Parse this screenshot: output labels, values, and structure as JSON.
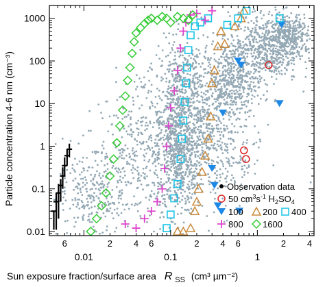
{
  "chart_data": {
    "type": "scatter",
    "title": "",
    "xlabel": {
      "prefix": "Sun exposure fraction/surface area",
      "symbol": "R",
      "subscript": "SS",
      "unit": "(cm³ µm⁻²)"
    },
    "ylabel": "Particle concentration 4-6 nm (cm⁻³)",
    "x_scale": "log",
    "y_scale": "log",
    "xlim": [
      0.004,
      4.5
    ],
    "ylim": [
      0.008,
      2000
    ],
    "x_major_ticks": [
      {
        "value": 0.01,
        "label": "0.01"
      },
      {
        "value": 0.1,
        "label": "0.1"
      },
      {
        "value": 1,
        "label": "1"
      }
    ],
    "x_minor_ticks": [
      {
        "value": 0.006,
        "label": "6"
      },
      {
        "value": 0.02,
        "label": "2"
      },
      {
        "value": 0.04,
        "label": "4"
      },
      {
        "value": 0.06,
        "label": "6"
      },
      {
        "value": 0.2,
        "label": "2"
      },
      {
        "value": 0.4,
        "label": "4"
      },
      {
        "value": 0.6,
        "label": "6"
      },
      {
        "value": 2,
        "label": "2"
      },
      {
        "value": 4,
        "label": "4"
      }
    ],
    "y_major_ticks": [
      {
        "value": 0.01,
        "label": "0.01"
      },
      {
        "value": 0.1,
        "label": "0.1"
      },
      {
        "value": 1,
        "label": "1"
      },
      {
        "value": 10,
        "label": "10"
      },
      {
        "value": 100,
        "label": "100"
      },
      {
        "value": 1000,
        "label": "1000"
      }
    ],
    "grid": false,
    "legend_position": "bottom-right",
    "legend": {
      "observation": "Observation data",
      "h2so4_prefix": "50 cm",
      "h2so4_sup1": "3",
      "h2so4_mid": "s",
      "h2so4_sup2": "-1",
      "h2so4_species": " H",
      "h2so4_sub1": "2",
      "h2so4_mid2": "SO",
      "h2so4_sub2": "4",
      "labels": {
        "s100": "100",
        "s200": "200",
        "s400": "400",
        "s800": "800",
        "s1600": "1600"
      }
    },
    "observation_scatter_color": "#93a8b4",
    "observation_binned": {
      "color": "#000000",
      "points": [
        {
          "x": 0.0045,
          "y": 0.03,
          "ylo": 0.011,
          "yhi": 0.03
        },
        {
          "x": 0.0048,
          "y": 0.05,
          "ylo": 0.011,
          "yhi": 0.08
        },
        {
          "x": 0.0051,
          "y": 0.08,
          "ylo": 0.02,
          "yhi": 0.13
        },
        {
          "x": 0.0054,
          "y": 0.12,
          "ylo": 0.05,
          "yhi": 0.17
        },
        {
          "x": 0.0057,
          "y": 0.2,
          "ylo": 0.1,
          "yhi": 0.32
        },
        {
          "x": 0.006,
          "y": 0.35,
          "ylo": 0.2,
          "yhi": 0.55
        },
        {
          "x": 0.0064,
          "y": 0.6,
          "ylo": 0.35,
          "yhi": 0.85
        },
        {
          "x": 0.0068,
          "y": 0.85,
          "ylo": 0.55,
          "yhi": 1.15
        }
      ]
    },
    "series": [
      {
        "name": "50",
        "marker": "circle-open",
        "color": "#dd2222",
        "points": [
          [
            0.7,
            0.8
          ],
          [
            0.74,
            0.5
          ],
          [
            1.35,
            80
          ]
        ]
      },
      {
        "name": "100",
        "marker": "triangle-down-filled",
        "color": "#1e88e5",
        "points": [
          [
            0.6,
            100
          ],
          [
            0.65,
            80
          ],
          [
            0.4,
            6
          ],
          [
            0.3,
            0.3
          ],
          [
            0.32,
            0.12
          ],
          [
            0.35,
            0.04
          ],
          [
            1.9,
            700
          ],
          [
            0.62,
            0.03
          ],
          [
            1.8,
            10
          ]
        ]
      },
      {
        "name": "200",
        "marker": "triangle-up-open",
        "color": "#c98a3b",
        "points": [
          [
            0.12,
            0.01
          ],
          [
            0.14,
            0.01
          ],
          [
            0.17,
            0.012
          ],
          [
            0.19,
            0.03
          ],
          [
            0.2,
            0.05
          ],
          [
            0.21,
            0.1
          ],
          [
            0.23,
            0.25
          ],
          [
            0.25,
            0.6
          ],
          [
            0.27,
            1.5
          ],
          [
            0.29,
            5
          ],
          [
            0.3,
            30
          ],
          [
            0.32,
            60
          ],
          [
            0.35,
            220
          ],
          [
            0.38,
            500
          ],
          [
            0.55,
            650
          ],
          [
            0.65,
            1000
          ],
          [
            0.42,
            250
          ],
          [
            0.7,
            1500
          ]
        ]
      },
      {
        "name": "400",
        "marker": "square-open",
        "color": "#17c3e6",
        "points": [
          [
            0.09,
            0.012
          ],
          [
            0.1,
            0.025
          ],
          [
            0.11,
            0.06
          ],
          [
            0.12,
            0.13
          ],
          [
            0.13,
            0.5
          ],
          [
            0.135,
            1.5
          ],
          [
            0.14,
            4
          ],
          [
            0.145,
            11
          ],
          [
            0.15,
            30
          ],
          [
            0.155,
            70
          ],
          [
            0.16,
            180
          ],
          [
            0.17,
            400
          ],
          [
            0.19,
            650
          ],
          [
            0.22,
            800
          ],
          [
            0.27,
            1000
          ],
          [
            0.45,
            700
          ],
          [
            0.6,
            1000
          ],
          [
            0.75,
            1500
          ],
          [
            1.8,
            1000
          ]
        ]
      },
      {
        "name": "800",
        "marker": "plus",
        "color": "#dd44cc",
        "points": [
          [
            0.03,
            0.015
          ],
          [
            0.04,
            0.012
          ],
          [
            0.05,
            0.02
          ],
          [
            0.06,
            0.03
          ],
          [
            0.07,
            0.05
          ],
          [
            0.08,
            0.1
          ],
          [
            0.085,
            0.3
          ],
          [
            0.09,
            1
          ],
          [
            0.095,
            3
          ],
          [
            0.1,
            8
          ],
          [
            0.11,
            20
          ],
          [
            0.12,
            60
          ],
          [
            0.13,
            200
          ],
          [
            0.14,
            500
          ],
          [
            0.15,
            800
          ],
          [
            0.17,
            1200
          ],
          [
            0.2,
            1300
          ],
          [
            0.25,
            900
          ],
          [
            0.3,
            1500
          ]
        ]
      },
      {
        "name": "1600",
        "marker": "diamond-open",
        "color": "#33cc33",
        "points": [
          [
            0.012,
            0.01
          ],
          [
            0.014,
            0.02
          ],
          [
            0.016,
            0.04
          ],
          [
            0.018,
            0.08
          ],
          [
            0.02,
            0.2
          ],
          [
            0.022,
            0.5
          ],
          [
            0.024,
            1.2
          ],
          [
            0.026,
            3
          ],
          [
            0.028,
            7
          ],
          [
            0.03,
            15
          ],
          [
            0.032,
            35
          ],
          [
            0.034,
            70
          ],
          [
            0.036,
            150
          ],
          [
            0.038,
            280
          ],
          [
            0.04,
            450
          ],
          [
            0.045,
            600
          ],
          [
            0.05,
            750
          ],
          [
            0.055,
            900
          ],
          [
            0.06,
            1000
          ],
          [
            0.07,
            900
          ],
          [
            0.08,
            1100
          ],
          [
            0.09,
            1000
          ],
          [
            0.1,
            800
          ],
          [
            0.12,
            1100
          ],
          [
            0.14,
            1000
          ],
          [
            0.16,
            900
          ],
          [
            0.18,
            1200
          ]
        ]
      }
    ],
    "observation_clusters": [
      {
        "cx": 0.03,
        "cy": 0.2,
        "sx": 0.35,
        "sy": 0.7,
        "n": 260
      },
      {
        "cx": 0.012,
        "cy": 0.06,
        "sx": 0.2,
        "sy": 0.45,
        "n": 180
      },
      {
        "cx": 0.12,
        "cy": 0.6,
        "sx": 0.12,
        "sy": 0.7,
        "n": 520
      },
      {
        "cx": 0.13,
        "cy": 20,
        "sx": 0.12,
        "sy": 0.6,
        "n": 300
      },
      {
        "cx": 0.2,
        "cy": 5,
        "sx": 0.18,
        "sy": 0.9,
        "n": 420
      },
      {
        "cx": 0.5,
        "cy": 30,
        "sx": 0.15,
        "sy": 0.45,
        "n": 420
      },
      {
        "cx": 1.2,
        "cy": 200,
        "sx": 0.2,
        "sy": 0.4,
        "n": 600
      },
      {
        "cx": 2.4,
        "cy": 400,
        "sx": 0.12,
        "sy": 0.25,
        "n": 300
      },
      {
        "cx": 0.06,
        "cy": 3,
        "sx": 0.25,
        "sy": 0.7,
        "n": 260
      },
      {
        "cx": 0.35,
        "cy": 0.5,
        "sx": 0.25,
        "sy": 0.6,
        "n": 240
      }
    ]
  }
}
